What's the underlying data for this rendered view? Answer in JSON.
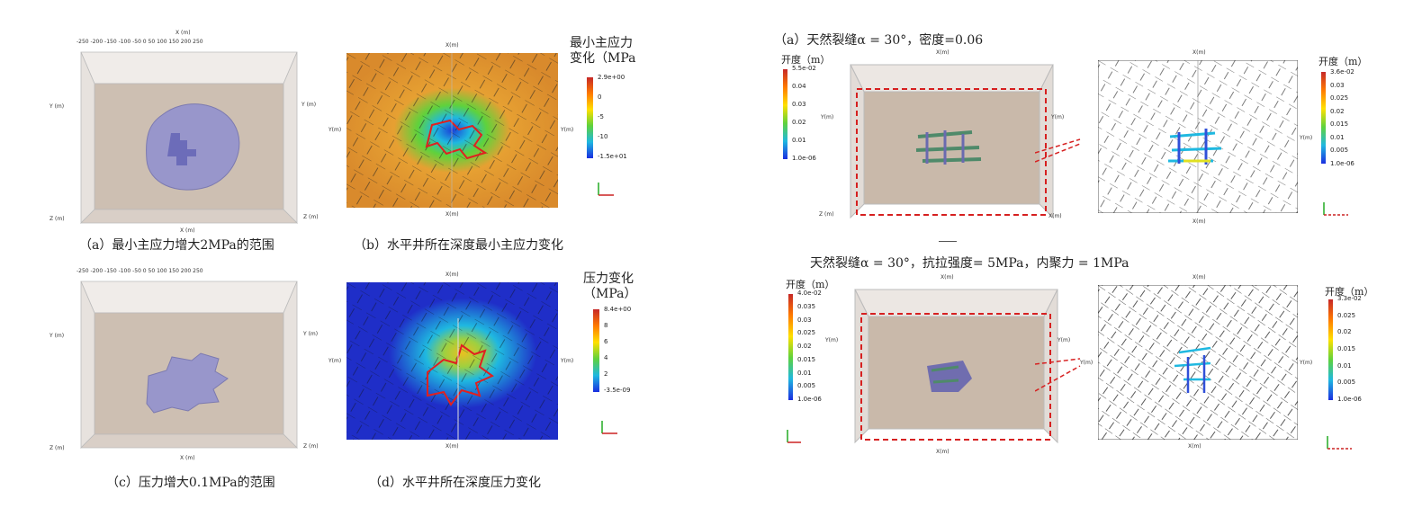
{
  "captions": {
    "a": "（a）最小主应力增大2MPa的范围",
    "b": "（b）水平井所在深度最小主应力变化",
    "c": "（c）压力增大0.1MPa的范围",
    "d": "（d）水平井所在深度压力变化",
    "right_top": "（a）天然裂缝α = 30°，密度=0.06",
    "right_bottom": "天然裂缝α = 30°，抗拉强度= 5MPa，内聚力 = 1MPa"
  },
  "colorbars": {
    "b": {
      "title_line1": "最小主应力",
      "title_line2": "变化（MPa",
      "labels": [
        "2.9e+00",
        "0",
        "-5",
        "-10",
        "-1.5e+01"
      ]
    },
    "d": {
      "title_line1": "压力变化",
      "title_line2": "（MPa）",
      "labels": [
        "8.4e+00",
        "8",
        "6",
        "4",
        "2",
        "-3.5e-09"
      ]
    },
    "rt_left": {
      "title": "开度（m）",
      "labels": [
        "5.5e-02",
        "0.04",
        "0.03",
        "0.02",
        "0.01",
        "1.0e-06"
      ]
    },
    "rt_right": {
      "title": "开度（m）",
      "labels": [
        "3.6e-02",
        "0.03",
        "0.025",
        "0.02",
        "0.015",
        "0.01",
        "0.005",
        "1.0e-06"
      ]
    },
    "rb_left": {
      "title": "开度（m）",
      "labels": [
        "4.0e-02",
        "0.035",
        "0.03",
        "0.025",
        "0.02",
        "0.015",
        "0.01",
        "0.005",
        "1.0e-06"
      ]
    },
    "rb_right": {
      "title": "开度（m）",
      "labels": [
        "3.3e-02",
        "0.025",
        "0.02",
        "0.015",
        "0.01",
        "0.005",
        "1.0e-06"
      ]
    }
  },
  "axes": {
    "x_label": "X (m)",
    "y_label": "Y (m)",
    "z_label": "Z (m)",
    "x_label_compact": "X(m)",
    "y_label_compact": "Y(m)",
    "x_ticks": "-250 -200 -150 -100 -50 0 50 100 150 200 250",
    "y_ticks": [
      "150",
      "100",
      "50",
      "0",
      "-50",
      "-100",
      "-150"
    ],
    "z_ticks": [
      "-2600",
      "-2700",
      "-2800"
    ]
  },
  "colors": {
    "red_frac": "#d82020",
    "dashed": "#d62020",
    "box_fill": "#c9b9aa",
    "blue_field": "#1f2ec8",
    "orange_field": "#e0a030"
  }
}
